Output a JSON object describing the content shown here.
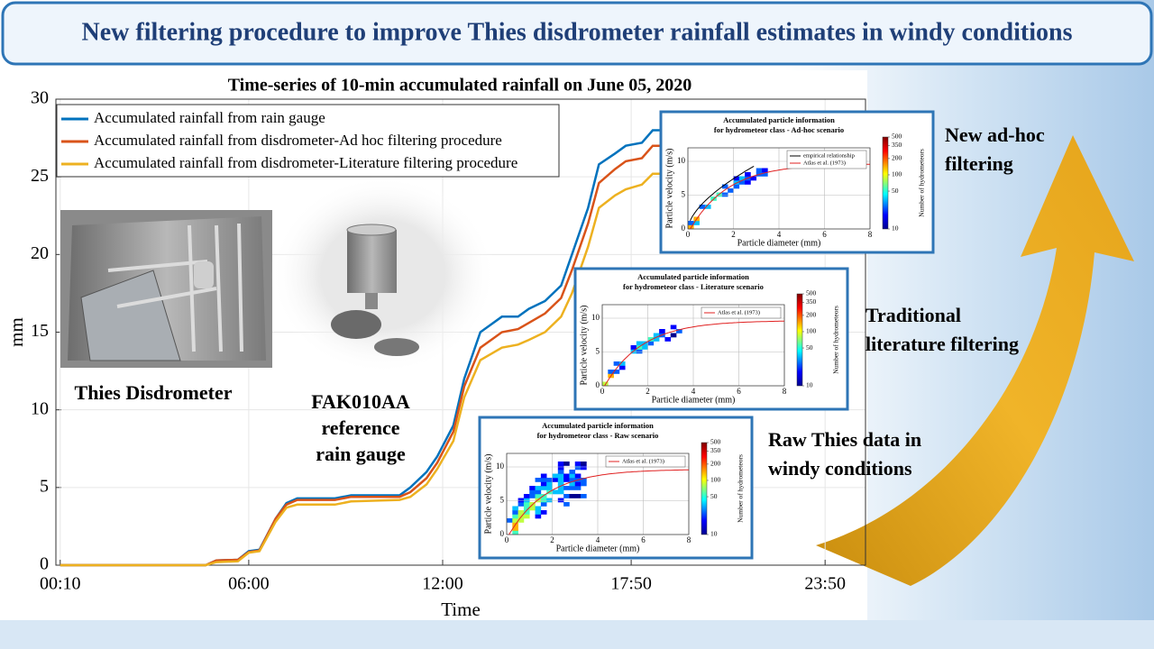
{
  "header": {
    "title": "New filtering procedure to improve Thies disdrometer rainfall estimates in windy conditions"
  },
  "chart_data": {
    "type": "line",
    "title": "Time-series of 10-min accumulated rainfall on June 05, 2020",
    "xlabel": "Time",
    "ylabel": "mm",
    "x": [
      10,
      280,
      300,
      340,
      360,
      380,
      410,
      430,
      450,
      520,
      550,
      640,
      660,
      690,
      710,
      740,
      760,
      790,
      810,
      830,
      860,
      880,
      910,
      940,
      960,
      990,
      1010,
      1040,
      1060,
      1090,
      1110,
      1140
    ],
    "xlim": [
      2,
      1505
    ],
    "xticks": [
      {
        "value": 10,
        "label": "00:10"
      },
      {
        "value": 360,
        "label": "06:00"
      },
      {
        "value": 720,
        "label": "12:00"
      },
      {
        "value": 1070,
        "label": "17:50"
      },
      {
        "value": 1430,
        "label": "23:50"
      }
    ],
    "ylim": [
      0,
      30
    ],
    "yticks": [
      0,
      5,
      10,
      15,
      20,
      25,
      30
    ],
    "grid": true,
    "legend": "upper left",
    "series": [
      {
        "name": "Accumulated rainfall from rain gauge",
        "color": "#0072bd",
        "values": [
          0,
          0,
          0.3,
          0.35,
          0.9,
          1.0,
          3,
          4,
          4.3,
          4.3,
          4.5,
          4.5,
          5,
          6,
          7,
          9,
          12,
          15,
          15.5,
          16,
          16,
          16.5,
          17,
          18,
          20,
          23,
          25.8,
          26.5,
          27,
          27.2,
          28,
          28
        ]
      },
      {
        "name": "Accumulated rainfall from disdrometer-Ad hoc filtering procedure",
        "color": "#d95319",
        "values": [
          0,
          0,
          0.3,
          0.35,
          0.85,
          0.95,
          3,
          3.9,
          4.2,
          4.2,
          4.4,
          4.4,
          4.7,
          5.6,
          6.6,
          8.6,
          11.5,
          14,
          14.5,
          15,
          15.2,
          15.6,
          16.2,
          17.2,
          19,
          22,
          24.6,
          25.5,
          26,
          26.2,
          27,
          27
        ]
      },
      {
        "name": "Accumulated rainfall from disdrometer-Literature filtering procedure",
        "color": "#edb120",
        "values": [
          0,
          0,
          0.2,
          0.25,
          0.8,
          0.9,
          2.8,
          3.7,
          3.9,
          3.9,
          4.1,
          4.2,
          4.4,
          5.2,
          6.2,
          8,
          10.8,
          13.2,
          13.6,
          14,
          14.2,
          14.5,
          15,
          16,
          17.5,
          20.5,
          23,
          23.8,
          24.2,
          24.5,
          25.2,
          25.2
        ]
      }
    ]
  },
  "photos": {
    "disdrometer": "Thies Disdrometer",
    "rain_gauge": [
      "FAK010AA",
      "reference",
      "rain gauge"
    ]
  },
  "insets": [
    {
      "title": [
        "Accumulated particle information",
        "for hydrometeor class - Ad-hoc scenario"
      ],
      "xlabel": "Particle diameter (mm)",
      "ylabel": "Particle velocity (m/s)",
      "xlim": [
        0,
        8
      ],
      "xticks": [
        0,
        2,
        4,
        6,
        8
      ],
      "ylim": [
        0,
        12
      ],
      "yticks": [
        0,
        5,
        10
      ],
      "legend": [
        "empirical relationship",
        "Atlas et al. (1973)"
      ],
      "colorbar": {
        "label": "Number of hydrometeors",
        "lim": [
          10,
          500
        ],
        "log": true,
        "ticks": [
          10,
          50,
          100,
          200,
          350,
          500
        ]
      },
      "caption": [
        "New ad-hoc",
        "filtering"
      ]
    },
    {
      "title": [
        "Accumulated particle information",
        "for hydrometeor class - Literature scenario"
      ],
      "xlabel": "Particle diameter (mm)",
      "ylabel": "Particle velocity (m/s)",
      "xlim": [
        0,
        8
      ],
      "xticks": [
        0,
        2,
        4,
        6,
        8
      ],
      "ylim": [
        0,
        12
      ],
      "yticks": [
        0,
        5,
        10
      ],
      "legend": [
        "Atlas et al. (1973)"
      ],
      "colorbar": {
        "label": "Number of hydrometeors",
        "lim": [
          10,
          500
        ],
        "log": true,
        "ticks": [
          10,
          50,
          100,
          200,
          350,
          500
        ]
      },
      "caption": [
        "Traditional",
        "literature filtering"
      ]
    },
    {
      "title": [
        "Accumulated particle information",
        "for hydrometeor class - Raw scenario"
      ],
      "xlabel": "Particle diameter (mm)",
      "ylabel": "Particle velocity (m/s)",
      "xlim": [
        0,
        8
      ],
      "xticks": [
        0,
        2,
        4,
        6,
        8
      ],
      "ylim": [
        0,
        12
      ],
      "yticks": [
        0,
        5,
        10
      ],
      "legend": [
        "Atlas et al. (1973)"
      ],
      "colorbar": {
        "label": "Number of hydrometeors",
        "lim": [
          10,
          500
        ],
        "log": true,
        "ticks": [
          10,
          50,
          100,
          200,
          350,
          500
        ]
      },
      "caption": [
        "Raw Thies data in",
        "windy conditions"
      ]
    }
  ]
}
